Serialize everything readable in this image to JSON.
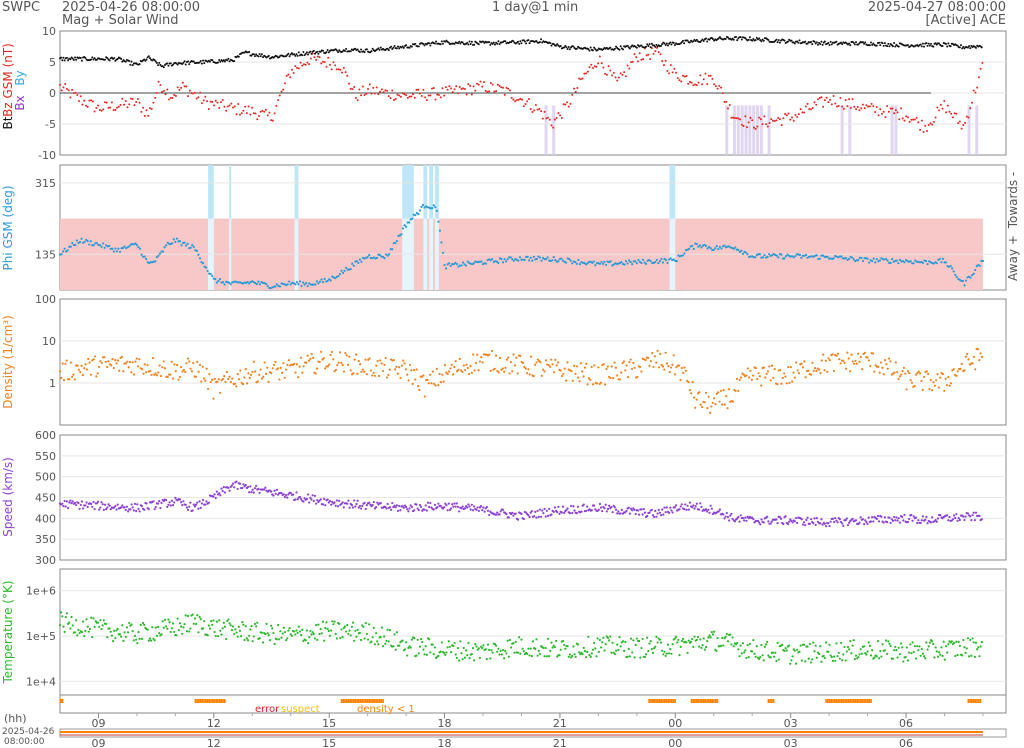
{
  "header": {
    "org": "SWPC",
    "start_time": "2025-04-26 08:00:00",
    "subtitle": "Mag + Solar Wind",
    "span": "1 day@1 min",
    "end_time": "2025-04-27 08:00:00",
    "source": "[Active] ACE"
  },
  "colors": {
    "bt": "#111111",
    "bz": "#e8261f",
    "by": "#33aadd",
    "bx": "#9933cc",
    "phi": "#2a9ad6",
    "density": "#f0821e",
    "speed": "#8c3fd4",
    "temperature": "#2ab82a",
    "away_fill": "#f8c8c8",
    "towards_fill": "#bfe6f7",
    "flag_red": "#e0242a",
    "flag_yellow": "#f0c000",
    "flag_orange": "#ff7f00"
  },
  "chart_data": [
    {
      "type": "scatter",
      "name": "mag",
      "ylabel_parts": [
        "Bt",
        "Bz GSM (nT)",
        "Bx",
        "By"
      ],
      "ylim": [
        -10,
        10
      ],
      "yticks": [
        10,
        5,
        0,
        -5,
        -10
      ],
      "series": [
        {
          "name": "Bt",
          "x": [
            0,
            1.5,
            2,
            2.3,
            2.65,
            3,
            3.8,
            4.5,
            4.8,
            5.5,
            6.5,
            7.5,
            8,
            9,
            10,
            11,
            12,
            12.5,
            13,
            13.5,
            14,
            15,
            16,
            17,
            17.5,
            18,
            19,
            20,
            21,
            22,
            23,
            23.5,
            24
          ],
          "values": [
            5.5,
            5.5,
            4.5,
            5.7,
            4.3,
            4.8,
            5.0,
            5.3,
            6.5,
            5.8,
            6.5,
            7.0,
            6.8,
            7.5,
            8.2,
            8.0,
            8.2,
            8.4,
            7.5,
            7.2,
            7.0,
            7.5,
            8.0,
            8.7,
            8.8,
            8.7,
            8.3,
            8.0,
            8.0,
            7.7,
            7.8,
            7.4,
            7.6
          ]
        },
        {
          "name": "Bz",
          "x": [
            0,
            0.5,
            1,
            1.5,
            2,
            2.3,
            2.6,
            2.9,
            3.2,
            3.8,
            4.5,
            5,
            5.5,
            6,
            6.5,
            7.3,
            7.7,
            8,
            9,
            10,
            11,
            11.5,
            12,
            12.5,
            12.8,
            13.2,
            13.6,
            14,
            14.5,
            15,
            15.5,
            16,
            16.5,
            17,
            17.5,
            17.8,
            18,
            19,
            20,
            21,
            22,
            22.5,
            23,
            23.5,
            24
          ],
          "values": [
            1.0,
            -1.0,
            -2.5,
            -2.0,
            -1.5,
            -3.5,
            1.5,
            -0.5,
            1.0,
            -1.5,
            -2.5,
            -3.0,
            -4.0,
            3.5,
            5.5,
            4.5,
            -0.5,
            0.5,
            -0.5,
            0.0,
            1.0,
            0.5,
            -1.0,
            -3.0,
            -5.0,
            -2.0,
            2.5,
            5.5,
            1.5,
            6.0,
            6.5,
            3.0,
            2.0,
            2.5,
            -3.5,
            -4.5,
            -5.0,
            -4.0,
            -1.0,
            -2.5,
            -3.5,
            -5.5,
            -2.0,
            -5.5,
            4.5
          ]
        }
      ],
      "by_shading_x": [
        12.6,
        12.8,
        17.3,
        17.5,
        17.6,
        17.7,
        17.8,
        17.9,
        18.0,
        18.1,
        18.2,
        18.4,
        20.3,
        20.5,
        21.6,
        21.7,
        23.6,
        23.8
      ]
    },
    {
      "type": "scatter",
      "name": "phi",
      "ylabel": "Phi GSM (deg)",
      "ylim": [
        45,
        360
      ],
      "yticks": [
        315,
        135
      ],
      "right_labels": [
        "Towards -",
        "Away +"
      ],
      "away_band": [
        0,
        24,
        45,
        225
      ],
      "towards_bands_x": [
        [
          3.85,
          4.0
        ],
        [
          4.4,
          4.45
        ],
        [
          6.1,
          6.2
        ],
        [
          8.9,
          9.2
        ],
        [
          9.45,
          9.55
        ],
        [
          9.6,
          9.7
        ],
        [
          9.75,
          9.85
        ],
        [
          15.85,
          16.0
        ]
      ],
      "series": [
        {
          "name": "Phi",
          "x": [
            0,
            0.5,
            1,
            1.5,
            2,
            2.3,
            2.5,
            2.8,
            3,
            3.5,
            4,
            4.5,
            5,
            5.5,
            6,
            6.5,
            7,
            7.5,
            8,
            8.5,
            9,
            9.3,
            9.5,
            9.8,
            10,
            11,
            12,
            13,
            14,
            15,
            15.5,
            16,
            16.3,
            16.6,
            17,
            17.5,
            18,
            19,
            20,
            21,
            22,
            22.5,
            23,
            23.5,
            24
          ],
          "values": [
            135,
            170,
            160,
            145,
            160,
            110,
            120,
            160,
            170,
            150,
            70,
            60,
            65,
            55,
            62,
            60,
            70,
            100,
            130,
            130,
            210,
            240,
            260,
            250,
            105,
            115,
            125,
            122,
            110,
            115,
            118,
            120,
            145,
            160,
            150,
            155,
            130,
            130,
            128,
            120,
            118,
            115,
            118,
            60,
            120
          ]
        }
      ]
    },
    {
      "type": "scatter",
      "name": "density",
      "ylabel": "Density (1/cm³)",
      "yscale": "log",
      "ylim": [
        0.1,
        100
      ],
      "yticks": [
        100,
        10,
        1
      ],
      "ytick_labels": [
        "100",
        "10",
        "1"
      ],
      "series": [
        {
          "name": "Density",
          "x": [
            0,
            1,
            2,
            3,
            3.5,
            4,
            4.5,
            5,
            6,
            7,
            8,
            9,
            9.5,
            10,
            11,
            12,
            13,
            14,
            15,
            15.5,
            16,
            16.5,
            17,
            17.5,
            18,
            19,
            19.5,
            20,
            21,
            22,
            23,
            23.5,
            24
          ],
          "values": [
            1.8,
            2.6,
            2.8,
            2.0,
            2.3,
            0.7,
            1.2,
            1.8,
            2.0,
            3.5,
            2.4,
            2.0,
            0.8,
            1.6,
            3.5,
            2.6,
            2.0,
            1.5,
            2.2,
            3.5,
            2.5,
            0.4,
            0.3,
            0.5,
            1.5,
            1.5,
            2.5,
            3.0,
            3.5,
            1.2,
            1.0,
            2.5,
            4.5
          ]
        }
      ]
    },
    {
      "type": "scatter",
      "name": "speed",
      "ylabel": "Speed (km/s)",
      "ylim": [
        300,
        600
      ],
      "yticks": [
        600,
        550,
        500,
        450,
        400,
        350,
        300
      ],
      "series": [
        {
          "name": "Speed",
          "x": [
            0,
            1,
            2,
            3,
            3.5,
            4,
            4.5,
            5,
            6,
            7,
            8,
            9,
            10,
            11,
            12,
            13,
            14,
            15,
            15.5,
            16,
            16.5,
            17,
            17.5,
            18,
            19,
            20,
            21,
            22,
            22.5,
            23,
            24
          ],
          "values": [
            435,
            430,
            425,
            440,
            425,
            450,
            480,
            470,
            455,
            440,
            430,
            425,
            430,
            420,
            405,
            420,
            425,
            415,
            410,
            425,
            430,
            420,
            400,
            395,
            395,
            390,
            395,
            400,
            395,
            400,
            405
          ]
        }
      ]
    },
    {
      "type": "scatter",
      "name": "temperature",
      "ylabel": "Temperature (°K)",
      "yscale": "log",
      "ylim": [
        5000,
        3000000
      ],
      "yticks": [
        1000000,
        100000,
        10000
      ],
      "ytick_labels": [
        "1e+6",
        "1e+5",
        "1e+4"
      ],
      "series": [
        {
          "name": "Temperature",
          "x": [
            0,
            1,
            2,
            3,
            3.5,
            4,
            5,
            6,
            7,
            8,
            9,
            10,
            11,
            12,
            13,
            14,
            15,
            16,
            17,
            18,
            18.5,
            19,
            20,
            21,
            22,
            23,
            24
          ],
          "values": [
            200000,
            140000,
            110000,
            150000,
            200000,
            150000,
            120000,
            100000,
            130000,
            120000,
            60000,
            50000,
            45000,
            60000,
            50000,
            60000,
            55000,
            60000,
            80000,
            50000,
            45000,
            40000,
            45000,
            50000,
            45000,
            50000,
            60000
          ]
        }
      ]
    },
    {
      "type": "bar",
      "name": "quality_flags",
      "legend": [
        "error",
        "suspect",
        "density < 1"
      ],
      "orange_spans": [
        [
          0.0,
          0.05
        ],
        [
          3.5,
          4.3
        ],
        [
          7.3,
          8.4
        ],
        [
          15.3,
          16.0
        ],
        [
          16.4,
          17.1
        ],
        [
          18.4,
          18.55
        ],
        [
          19.9,
          21.1
        ],
        [
          23.6,
          23.95
        ]
      ]
    }
  ],
  "xaxis": {
    "unit_label": "(hh)",
    "ticks": [
      "09",
      "12",
      "15",
      "18",
      "21",
      "00",
      "03",
      "06"
    ],
    "tick_offsets_h": [
      1,
      4,
      7,
      10,
      13,
      16,
      19,
      22
    ],
    "overview_start": "2025-04-26",
    "overview_start_time": "08:00:00"
  }
}
